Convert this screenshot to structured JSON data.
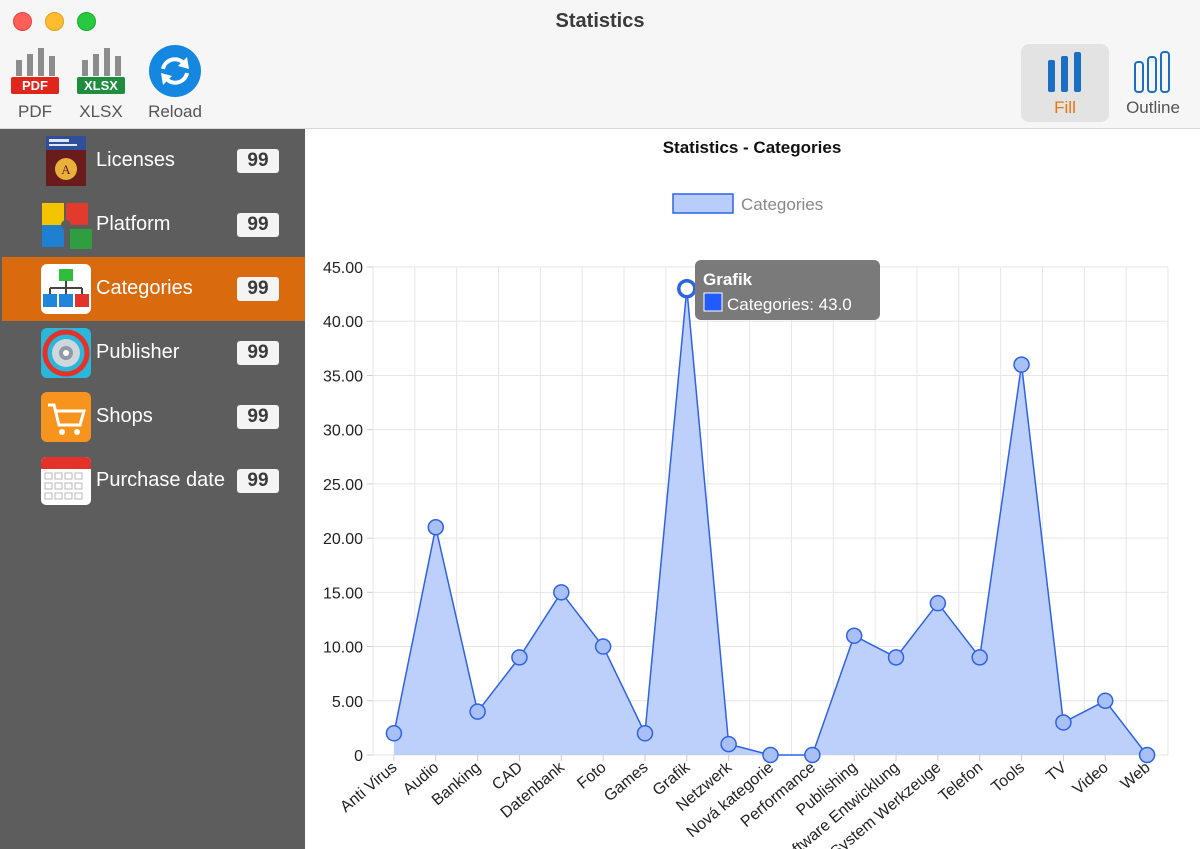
{
  "window": {
    "title": "Statistics"
  },
  "toolbar": {
    "pdf": {
      "label": "PDF",
      "badge": "PDF",
      "icon": "pdf-chart-icon"
    },
    "xlsx": {
      "label": "XLSX",
      "badge": "XLSX",
      "icon": "xlsx-chart-icon"
    },
    "reload": {
      "label": "Reload",
      "icon": "reload-icon"
    },
    "fill": {
      "label": "Fill",
      "icon": "bars-filled-icon",
      "selected": true
    },
    "outline": {
      "label": "Outline",
      "icon": "bars-outline-icon",
      "selected": false
    }
  },
  "sidebar": {
    "items": [
      {
        "label": "Licenses",
        "count": "99",
        "icon": "licenses-icon"
      },
      {
        "label": "Platform",
        "count": "99",
        "icon": "platform-puzzle-icon"
      },
      {
        "label": "Categories",
        "count": "99",
        "icon": "categories-tree-icon",
        "selected": true
      },
      {
        "label": "Publisher",
        "count": "99",
        "icon": "publisher-gear-icon"
      },
      {
        "label": "Shops",
        "count": "99",
        "icon": "shopping-cart-icon"
      },
      {
        "label": "Purchase date",
        "count": "99",
        "icon": "calendar-icon"
      }
    ]
  },
  "colors": {
    "accent": "#d96a0e",
    "series_fill": "#b9cdfb",
    "series_line": "#2f62e6",
    "sidebar": "#5d5d5d"
  },
  "tooltip": {
    "title": "Grafik",
    "text": "Categories: 43.0"
  },
  "chart_data": {
    "type": "area",
    "title": "Statistics - Categories",
    "categories": [
      "Anti Virus",
      "Audio",
      "Banking",
      "CAD",
      "Datenbank",
      "Foto",
      "Games",
      "Grafik",
      "Netzwerk",
      "Nová kategorie",
      "Performance",
      "Publishing",
      "Software Entwicklung",
      "System Werkzeuge",
      "Telefon",
      "Tools",
      "TV",
      "Video",
      "Web"
    ],
    "series": [
      {
        "name": "Categories",
        "values": [
          2,
          21,
          4,
          9,
          15,
          10,
          2,
          43,
          1,
          0,
          0,
          11,
          9,
          14,
          9,
          36,
          3,
          5,
          0
        ]
      }
    ],
    "ylim": [
      0,
      45
    ],
    "yticks": [
      "0",
      "5.00",
      "10.00",
      "15.00",
      "20.00",
      "25.00",
      "30.00",
      "35.00",
      "40.00",
      "45.00"
    ],
    "grid": true,
    "legend": "top-center",
    "highlighted_index": 7
  }
}
